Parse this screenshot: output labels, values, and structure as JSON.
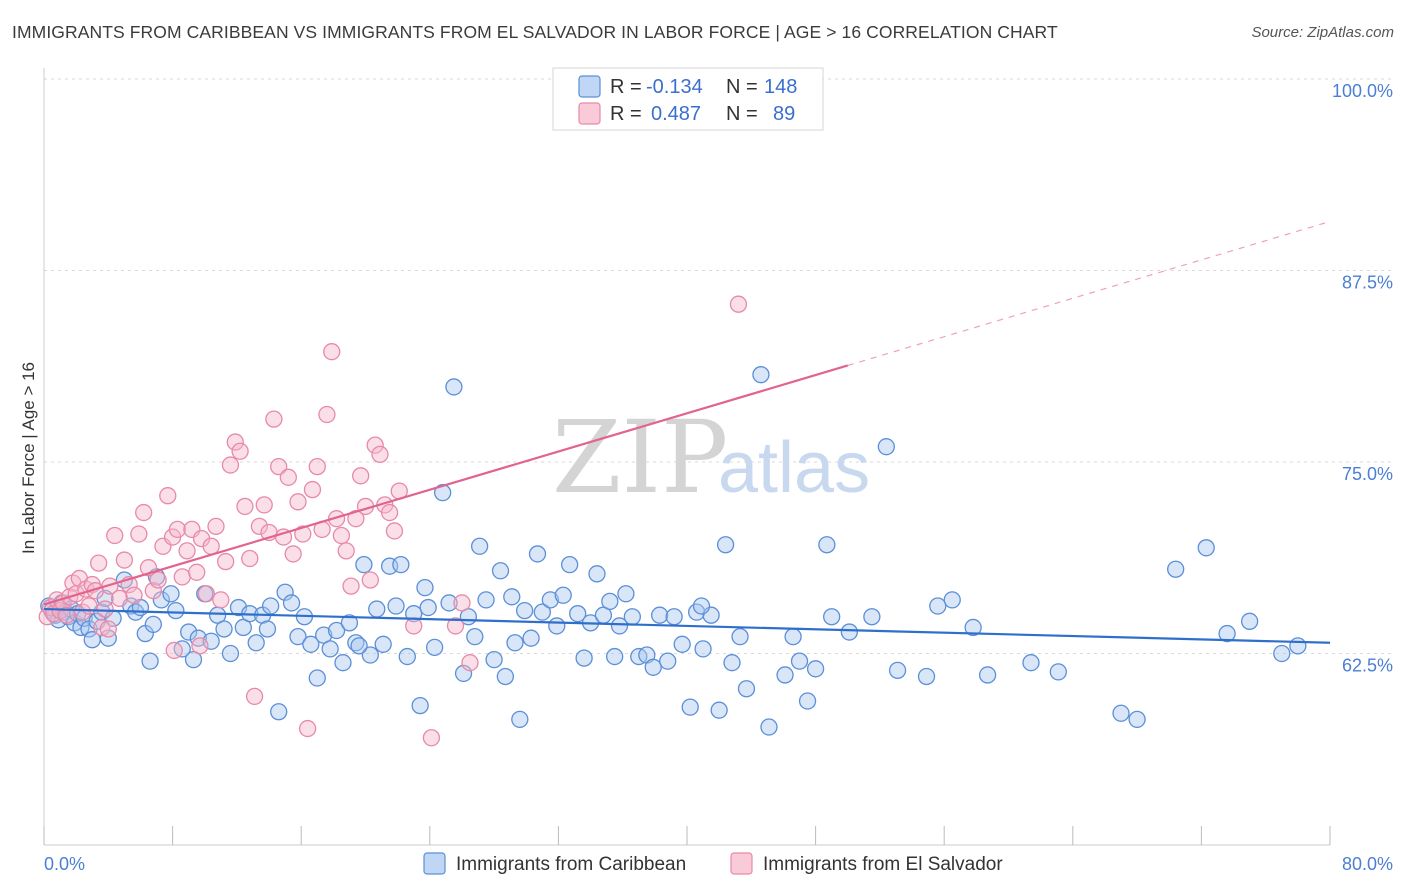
{
  "title": "IMMIGRANTS FROM CARIBBEAN VS IMMIGRANTS FROM EL SALVADOR IN LABOR FORCE | AGE > 16 CORRELATION CHART",
  "source": "Source: ZipAtlas.com",
  "watermark": {
    "zip": "ZIP",
    "atlas": "atlas"
  },
  "colors": {
    "caribbean_fill": "#a9c8f0",
    "caribbean_stroke": "#5b8fd8",
    "caribbean_line": "#2f6fcc",
    "salvador_fill": "#f7b8cb",
    "salvador_stroke": "#e889a8",
    "salvador_line": "#e2648e",
    "tick_text": "#4a7fd4"
  },
  "legend": {
    "rows": [
      {
        "r_label": "R =",
        "r_value": "-0.134",
        "n_label": "N =",
        "n_value": "148"
      },
      {
        "r_label": "R =",
        "r_value": "0.487",
        "n_label": "N =",
        "n_value": "89"
      }
    ]
  },
  "chart_data": {
    "type": "scatter",
    "title": "IMMIGRANTS FROM CARIBBEAN VS IMMIGRANTS FROM EL SALVADOR IN LABOR FORCE | AGE > 16 CORRELATION CHART",
    "xlabel": "",
    "ylabel": "In Labor Force | Age > 16",
    "xlim": [
      0,
      80
    ],
    "ylim": [
      50,
      100
    ],
    "x_tick_labels": [
      "0.0%",
      "80.0%"
    ],
    "y_tick_labels": [
      "100.0%",
      "87.5%",
      "75.0%",
      "62.5%"
    ],
    "y_ticks": [
      100,
      87.5,
      75,
      62.5
    ],
    "grid": true,
    "legend_position": "top-center",
    "series": [
      {
        "name": "Immigrants from Caribbean",
        "R": -0.134,
        "N": 148,
        "trend": {
          "x": [
            0,
            80
          ],
          "y": [
            65.4,
            63.2
          ]
        },
        "points": [
          [
            0.3,
            65.6
          ],
          [
            0.5,
            65.3
          ],
          [
            0.7,
            65.0
          ],
          [
            0.9,
            64.7
          ],
          [
            1.1,
            65.8
          ],
          [
            1.3,
            65.2
          ],
          [
            1.5,
            64.9
          ],
          [
            1.7,
            65.4
          ],
          [
            1.9,
            64.5
          ],
          [
            2.1,
            65.1
          ],
          [
            2.3,
            64.2
          ],
          [
            2.5,
            64.8
          ],
          [
            2.8,
            64.1
          ],
          [
            3.0,
            63.4
          ],
          [
            3.3,
            64.6
          ],
          [
            3.6,
            65.2
          ],
          [
            3.8,
            66.1
          ],
          [
            4.0,
            63.5
          ],
          [
            4.3,
            64.8
          ],
          [
            5.0,
            67.3
          ],
          [
            5.4,
            65.6
          ],
          [
            5.7,
            65.2
          ],
          [
            6.0,
            65.5
          ],
          [
            6.3,
            63.8
          ],
          [
            6.6,
            62.0
          ],
          [
            7.0,
            67.5
          ],
          [
            7.3,
            66.0
          ],
          [
            7.9,
            66.4
          ],
          [
            8.2,
            65.3
          ],
          [
            8.6,
            62.8
          ],
          [
            9.0,
            63.9
          ],
          [
            9.3,
            62.1
          ],
          [
            9.6,
            63.5
          ],
          [
            10.0,
            66.4
          ],
          [
            10.4,
            63.3
          ],
          [
            10.8,
            65.0
          ],
          [
            11.2,
            64.1
          ],
          [
            11.6,
            62.5
          ],
          [
            12.1,
            65.5
          ],
          [
            12.4,
            64.2
          ],
          [
            12.8,
            65.1
          ],
          [
            13.2,
            63.2
          ],
          [
            13.6,
            65.0
          ],
          [
            14.1,
            65.6
          ],
          [
            14.6,
            58.7
          ],
          [
            15.0,
            66.5
          ],
          [
            15.4,
            65.8
          ],
          [
            15.8,
            63.6
          ],
          [
            16.2,
            64.9
          ],
          [
            16.6,
            63.1
          ],
          [
            17.0,
            60.9
          ],
          [
            17.4,
            63.7
          ],
          [
            17.8,
            62.8
          ],
          [
            18.2,
            64.0
          ],
          [
            18.6,
            61.9
          ],
          [
            19.0,
            64.5
          ],
          [
            19.4,
            63.2
          ],
          [
            19.9,
            68.3
          ],
          [
            20.3,
            62.4
          ],
          [
            20.7,
            65.4
          ],
          [
            21.1,
            63.1
          ],
          [
            21.5,
            68.2
          ],
          [
            21.9,
            65.6
          ],
          [
            22.2,
            68.3
          ],
          [
            22.6,
            62.3
          ],
          [
            23.0,
            65.1
          ],
          [
            23.4,
            59.1
          ],
          [
            23.9,
            65.5
          ],
          [
            24.3,
            62.9
          ],
          [
            24.8,
            73.0
          ],
          [
            25.2,
            65.8
          ],
          [
            25.5,
            79.9
          ],
          [
            26.1,
            61.2
          ],
          [
            26.4,
            64.9
          ],
          [
            26.8,
            63.6
          ],
          [
            27.1,
            69.5
          ],
          [
            27.5,
            66.0
          ],
          [
            28.0,
            62.1
          ],
          [
            28.4,
            67.9
          ],
          [
            28.7,
            61.0
          ],
          [
            29.1,
            66.2
          ],
          [
            29.6,
            58.2
          ],
          [
            29.9,
            65.3
          ],
          [
            30.3,
            63.5
          ],
          [
            30.7,
            69.0
          ],
          [
            31.0,
            65.2
          ],
          [
            31.5,
            66.0
          ],
          [
            31.9,
            64.3
          ],
          [
            32.3,
            66.3
          ],
          [
            32.7,
            68.3
          ],
          [
            33.2,
            65.1
          ],
          [
            33.6,
            62.2
          ],
          [
            34.0,
            64.5
          ],
          [
            34.4,
            67.7
          ],
          [
            34.8,
            65.0
          ],
          [
            35.2,
            65.9
          ],
          [
            35.8,
            64.3
          ],
          [
            36.2,
            66.4
          ],
          [
            36.6,
            64.9
          ],
          [
            37.0,
            62.3
          ],
          [
            37.5,
            62.4
          ],
          [
            37.9,
            61.6
          ],
          [
            38.3,
            65.0
          ],
          [
            38.8,
            62.0
          ],
          [
            39.2,
            64.9
          ],
          [
            39.7,
            63.1
          ],
          [
            40.2,
            59.0
          ],
          [
            40.6,
            65.2
          ],
          [
            41.0,
            62.8
          ],
          [
            41.5,
            65.0
          ],
          [
            42.0,
            58.8
          ],
          [
            42.4,
            69.6
          ],
          [
            42.8,
            61.9
          ],
          [
            43.3,
            63.6
          ],
          [
            43.7,
            60.2
          ],
          [
            44.6,
            80.7
          ],
          [
            45.1,
            57.7
          ],
          [
            46.1,
            61.1
          ],
          [
            46.6,
            63.6
          ],
          [
            47.0,
            62.0
          ],
          [
            47.5,
            59.4
          ],
          [
            48.0,
            61.5
          ],
          [
            49.0,
            64.9
          ],
          [
            50.1,
            63.9
          ],
          [
            52.4,
            76.0
          ],
          [
            53.1,
            61.4
          ],
          [
            54.9,
            61.0
          ],
          [
            55.6,
            65.6
          ],
          [
            56.5,
            66.0
          ],
          [
            58.7,
            61.1
          ],
          [
            61.4,
            61.9
          ],
          [
            63.1,
            61.3
          ],
          [
            67.0,
            58.6
          ],
          [
            68.0,
            58.2
          ],
          [
            70.4,
            68.0
          ],
          [
            72.3,
            69.4
          ],
          [
            73.6,
            63.8
          ],
          [
            75.0,
            64.6
          ],
          [
            77.0,
            62.5
          ],
          [
            78.0,
            63.0
          ],
          [
            6.8,
            64.4
          ],
          [
            13.9,
            64.1
          ],
          [
            19.6,
            63.0
          ],
          [
            23.7,
            66.8
          ],
          [
            29.3,
            63.2
          ],
          [
            35.5,
            62.3
          ],
          [
            40.9,
            65.6
          ],
          [
            48.7,
            69.6
          ],
          [
            51.5,
            64.9
          ],
          [
            57.8,
            64.2
          ]
        ]
      },
      {
        "name": "Immigrants from El Salvador",
        "R": 0.487,
        "N": 89,
        "trend": {
          "x": [
            0,
            50
          ],
          "y": [
            65.7,
            81.3
          ]
        },
        "trend_extended": {
          "x": [
            50,
            80
          ],
          "y": [
            81.3,
            90.7
          ]
        },
        "points": [
          [
            0.2,
            64.9
          ],
          [
            0.4,
            65.5
          ],
          [
            0.6,
            65.1
          ],
          [
            0.8,
            66.0
          ],
          [
            1.0,
            65.3
          ],
          [
            1.2,
            65.8
          ],
          [
            1.4,
            65.0
          ],
          [
            1.6,
            66.2
          ],
          [
            1.8,
            67.1
          ],
          [
            2.0,
            66.4
          ],
          [
            2.2,
            67.4
          ],
          [
            2.4,
            65.2
          ],
          [
            2.6,
            66.7
          ],
          [
            2.8,
            65.6
          ],
          [
            3.0,
            67.0
          ],
          [
            3.2,
            66.6
          ],
          [
            3.4,
            68.4
          ],
          [
            3.6,
            64.2
          ],
          [
            3.8,
            65.4
          ],
          [
            4.1,
            66.9
          ],
          [
            4.4,
            70.2
          ],
          [
            4.7,
            66.1
          ],
          [
            5.0,
            68.6
          ],
          [
            5.3,
            67.0
          ],
          [
            5.6,
            66.3
          ],
          [
            5.9,
            70.3
          ],
          [
            6.2,
            71.7
          ],
          [
            6.5,
            68.1
          ],
          [
            6.8,
            66.6
          ],
          [
            7.1,
            67.3
          ],
          [
            7.4,
            69.5
          ],
          [
            7.7,
            72.8
          ],
          [
            8.0,
            70.1
          ],
          [
            8.3,
            70.6
          ],
          [
            8.6,
            67.5
          ],
          [
            8.9,
            69.2
          ],
          [
            9.2,
            70.6
          ],
          [
            9.5,
            67.8
          ],
          [
            9.8,
            70.0
          ],
          [
            10.1,
            66.4
          ],
          [
            10.4,
            69.5
          ],
          [
            10.7,
            70.8
          ],
          [
            11.0,
            66.0
          ],
          [
            11.3,
            68.5
          ],
          [
            11.6,
            74.8
          ],
          [
            11.9,
            76.3
          ],
          [
            12.2,
            75.7
          ],
          [
            12.5,
            72.1
          ],
          [
            12.8,
            68.7
          ],
          [
            13.1,
            59.7
          ],
          [
            13.4,
            70.8
          ],
          [
            13.7,
            72.2
          ],
          [
            14.0,
            70.4
          ],
          [
            14.3,
            77.8
          ],
          [
            14.6,
            74.7
          ],
          [
            14.9,
            70.1
          ],
          [
            15.2,
            74.0
          ],
          [
            15.5,
            69.0
          ],
          [
            15.8,
            72.4
          ],
          [
            16.1,
            70.3
          ],
          [
            16.4,
            57.6
          ],
          [
            16.7,
            73.2
          ],
          [
            17.0,
            74.7
          ],
          [
            17.3,
            70.6
          ],
          [
            17.6,
            78.1
          ],
          [
            17.9,
            82.2
          ],
          [
            18.2,
            71.3
          ],
          [
            18.5,
            70.2
          ],
          [
            18.8,
            69.2
          ],
          [
            19.1,
            66.9
          ],
          [
            19.4,
            71.3
          ],
          [
            19.7,
            74.1
          ],
          [
            20.0,
            72.1
          ],
          [
            20.3,
            67.3
          ],
          [
            20.6,
            76.1
          ],
          [
            20.9,
            75.5
          ],
          [
            21.2,
            72.2
          ],
          [
            21.5,
            71.7
          ],
          [
            21.8,
            70.5
          ],
          [
            22.1,
            73.1
          ],
          [
            23.0,
            64.3
          ],
          [
            24.1,
            57.0
          ],
          [
            25.6,
            64.3
          ],
          [
            26.0,
            65.8
          ],
          [
            26.5,
            61.9
          ],
          [
            8.1,
            62.7
          ],
          [
            9.7,
            63.0
          ],
          [
            4.0,
            64.1
          ],
          [
            43.2,
            85.3
          ]
        ]
      }
    ]
  },
  "bottom_legend": {
    "items": [
      {
        "label": "Immigrants from Caribbean"
      },
      {
        "label": "Immigrants from El Salvador"
      }
    ]
  }
}
